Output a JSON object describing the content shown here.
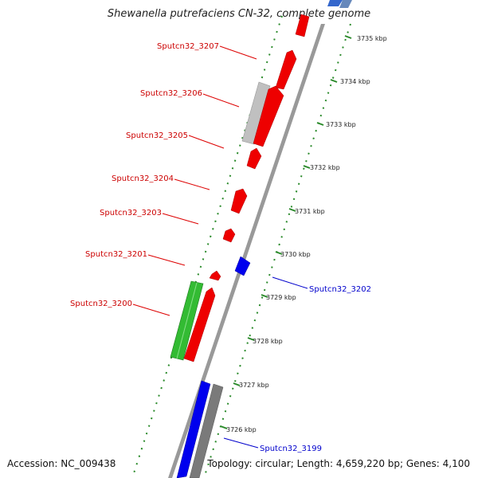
{
  "title": "Shewanella putrefaciens CN-32, complete genome",
  "accession": "Accession: NC_009438",
  "topology": "Topology: circular; Length: 4,659,220 bp; Genes: 4,100",
  "colors": {
    "forward": "#ff0000",
    "reverse": "#0000ee",
    "green": "#33bb33",
    "grey": "#bbbbbb",
    "dark_grey": "#777777",
    "backbone": "#999999",
    "dots": "#2a8a2a",
    "label_red": "#cc0000",
    "label_blue": "#0000cc"
  },
  "ticks": [
    "3735 kbp",
    "3734 kbp",
    "3733 kbp",
    "3732 kbp",
    "3731 kbp",
    "3730 kbp",
    "3729 kbp",
    "3728 kbp",
    "3727 kbp",
    "3726 kbp"
  ],
  "gene_labels": [
    {
      "text": "Sputcn32_3207",
      "strand": "forward"
    },
    {
      "text": "Sputcn32_3206",
      "strand": "forward"
    },
    {
      "text": "Sputcn32_3205",
      "strand": "forward"
    },
    {
      "text": "Sputcn32_3204",
      "strand": "forward"
    },
    {
      "text": "Sputcn32_3203",
      "strand": "forward"
    },
    {
      "text": "Sputcn32_3201",
      "strand": "forward"
    },
    {
      "text": "Sputcn32_3200",
      "strand": "forward"
    },
    {
      "text": "Sputcn32_3202",
      "strand": "reverse"
    },
    {
      "text": "Sputcn32_3199",
      "strand": "reverse"
    }
  ]
}
